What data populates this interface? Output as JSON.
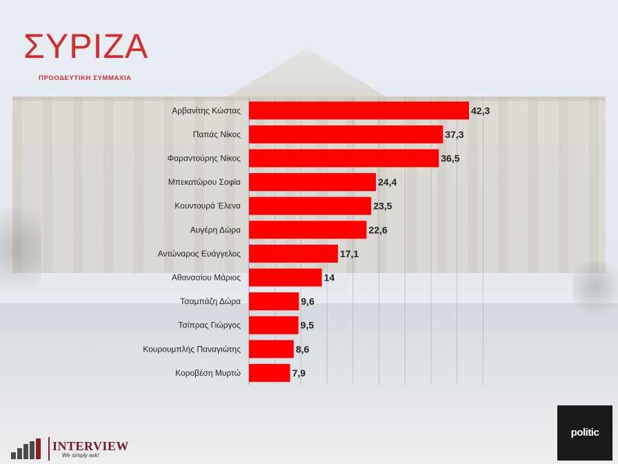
{
  "logo": {
    "word": "ΣΥΡΙΖΑ",
    "subtitle": "ΠΡΟΟΔΕΥΤΙΚΗ ΣΥΜΜΑΧΙΑ"
  },
  "footer": {
    "interview_word": "INTERVIEW",
    "interview_tagline": "We simply ask!",
    "politic_word": "politic"
  },
  "colors": {
    "bar": "#fe0000",
    "brand": "#d62b2b"
  },
  "chart_data": {
    "type": "bar",
    "orientation": "horizontal",
    "title": "",
    "xlabel": "",
    "ylabel": "",
    "categories": [
      "Αρβανίτης Κώστας",
      "Παπάς Νίκος",
      "Φαραντούρης Νίκος",
      "Μπεκατώρου Σοφία",
      "Κουντουρά Έλενα",
      "Αυγέρη Δώρα",
      "Αντώναρος Ευάγγελος",
      "Αθανασίου Μάριος",
      "Τσαμπάζη Δώρα",
      "Τσίπρας Γιώργος",
      "Κουρουμπλής Παναγιώτης",
      "Κοροβέση Μυρτώ"
    ],
    "values": [
      42.3,
      37.3,
      36.5,
      24.4,
      23.5,
      22.6,
      17.1,
      14,
      9.6,
      9.5,
      8.6,
      7.9
    ],
    "value_labels": [
      "42,3",
      "37,3",
      "36,5",
      "24,4",
      "23,5",
      "22,6",
      "17,1",
      "14",
      "9,6",
      "9,5",
      "8,6",
      "7,9"
    ],
    "xlim": [
      0,
      45
    ],
    "grid": true
  }
}
